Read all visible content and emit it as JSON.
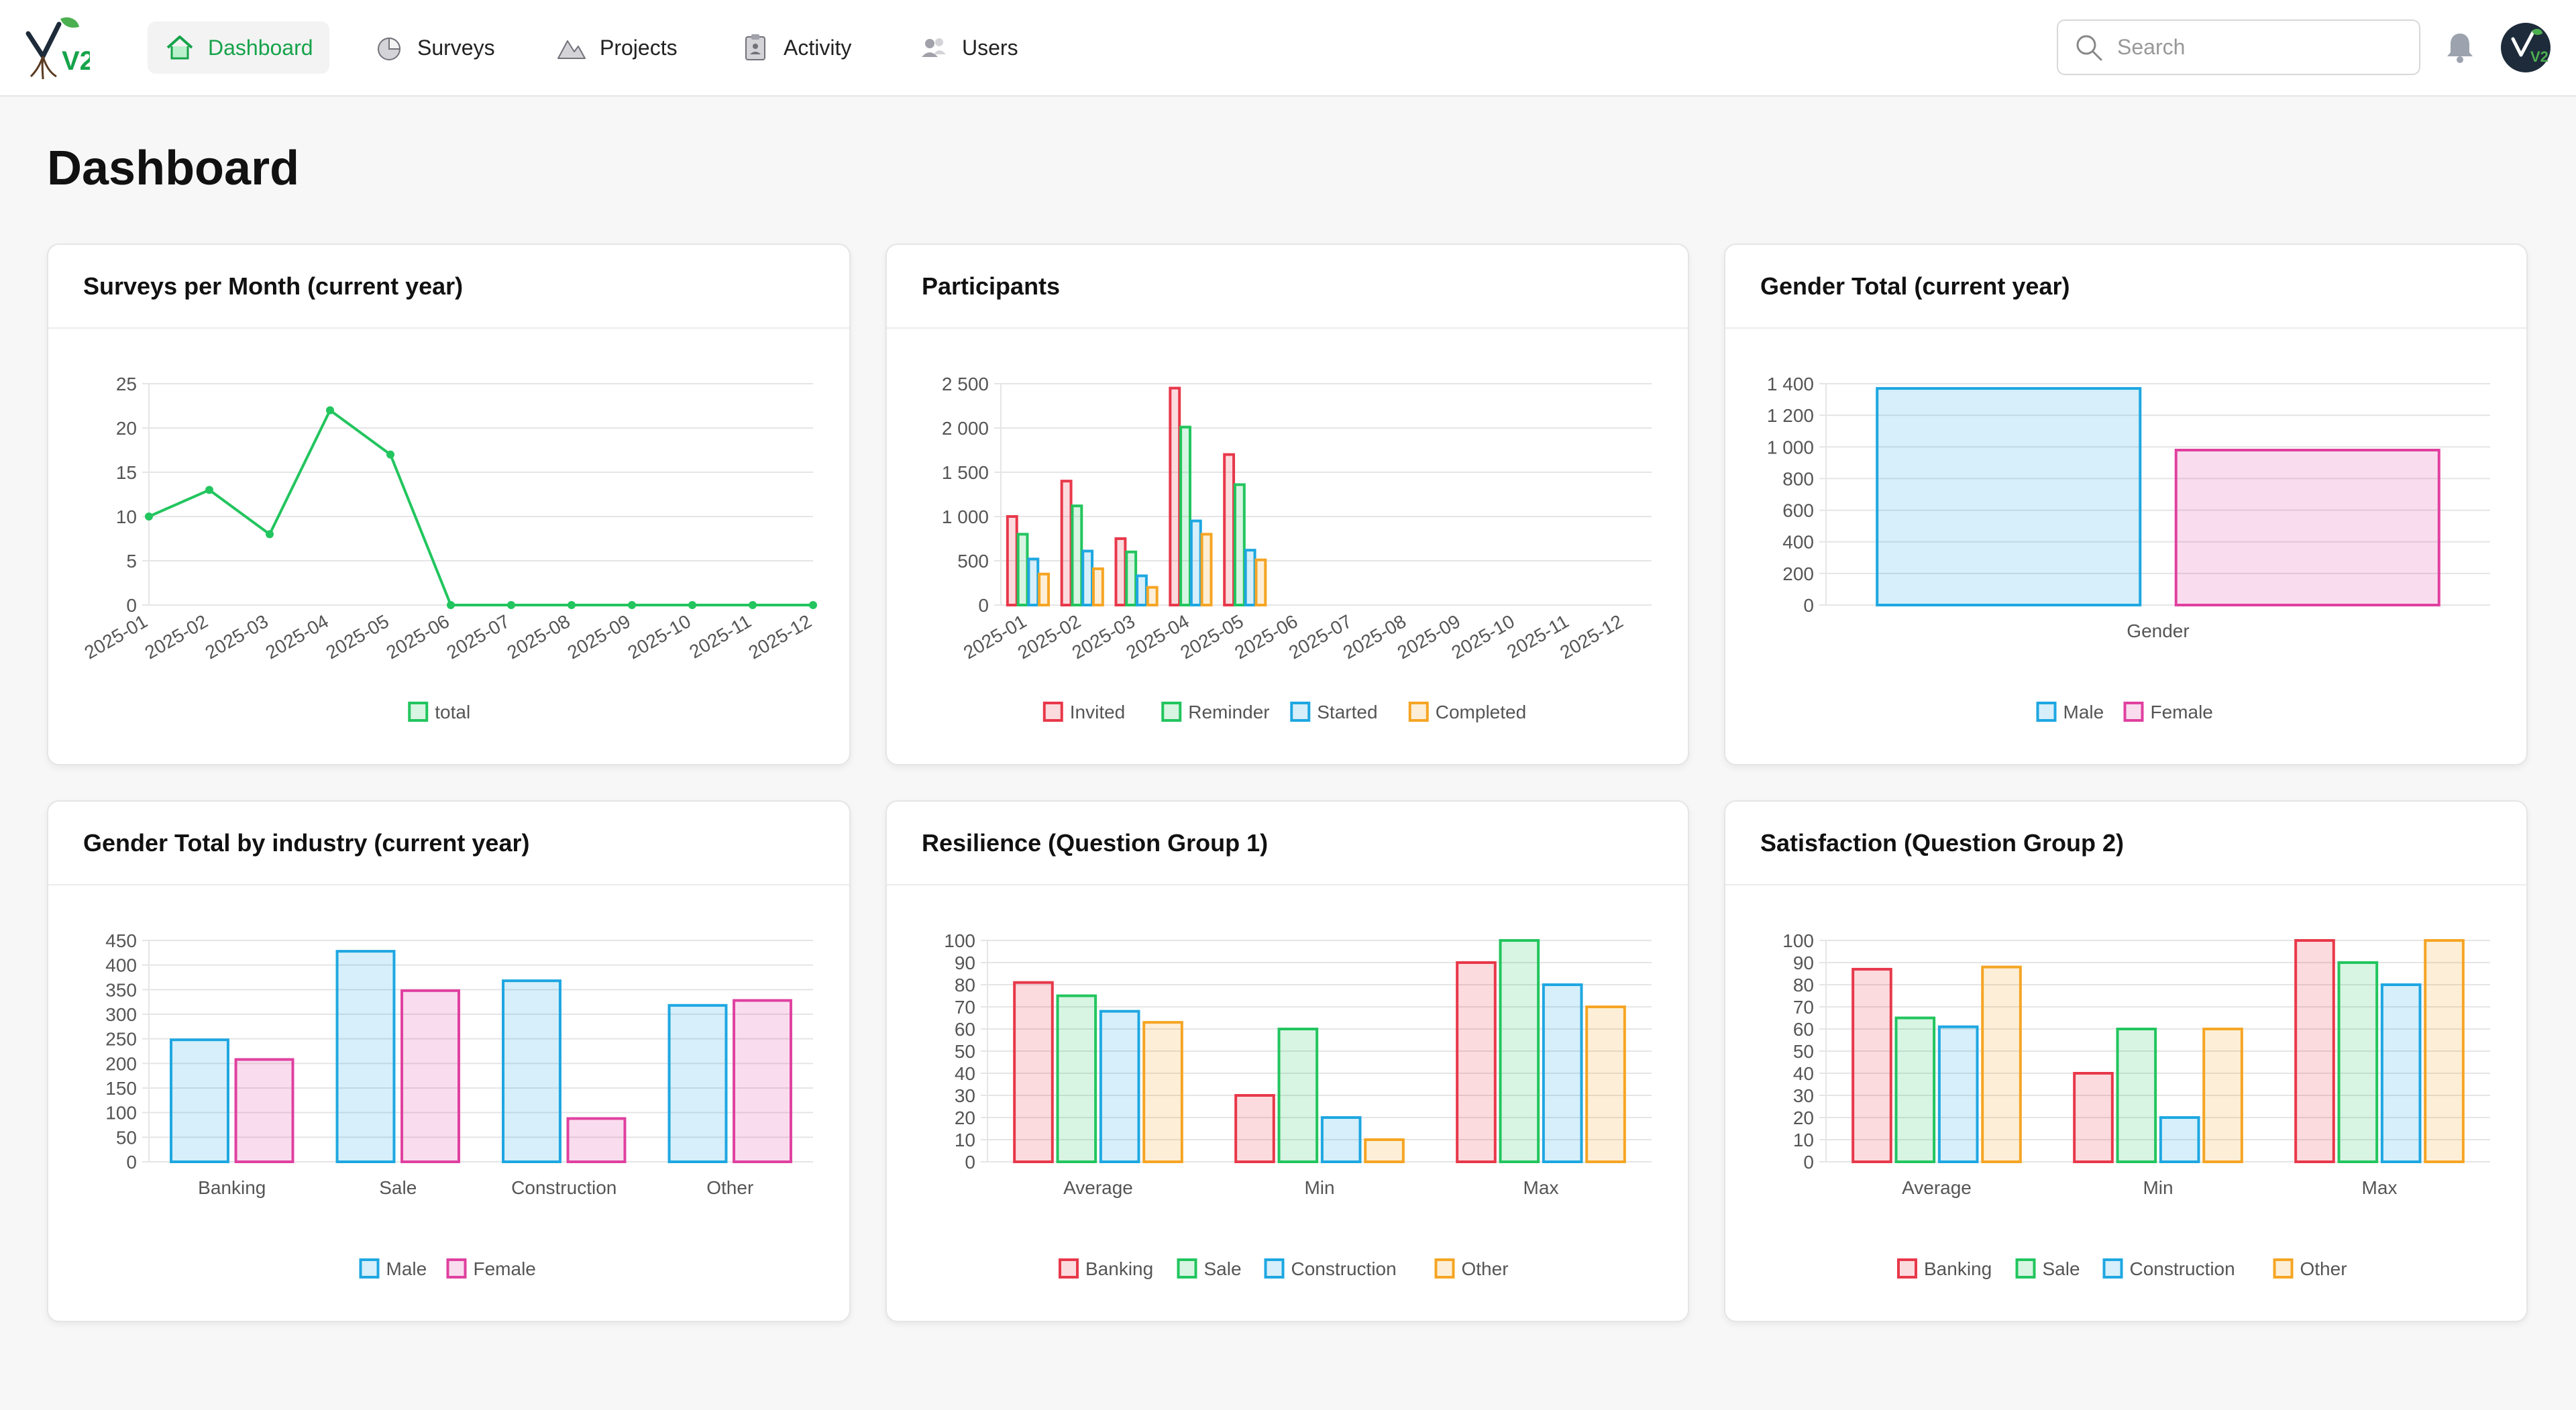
{
  "nav": {
    "items": [
      {
        "label": "Dashboard",
        "icon": "home-icon",
        "active": true
      },
      {
        "label": "Surveys",
        "icon": "pie-icon",
        "active": false
      },
      {
        "label": "Projects",
        "icon": "mountain-icon",
        "active": false
      },
      {
        "label": "Activity",
        "icon": "clipboard-icon",
        "active": false
      },
      {
        "label": "Users",
        "icon": "users-icon",
        "active": false
      }
    ],
    "search_placeholder": "Search"
  },
  "logo": {
    "text": "V2"
  },
  "page": {
    "title": "Dashboard"
  },
  "colors": {
    "accent": "#16a34a",
    "red": "#e8384a",
    "green": "#22c55e",
    "blue": "#1ea7e1",
    "orange": "#f5a524",
    "pink": "#e040a0"
  },
  "chart_data": [
    {
      "id": "surveys",
      "title": "Surveys per Month (current year)",
      "type": "line",
      "categories": [
        "2025-01",
        "2025-02",
        "2025-03",
        "2025-04",
        "2025-05",
        "2025-06",
        "2025-07",
        "2025-08",
        "2025-09",
        "2025-10",
        "2025-11",
        "2025-12"
      ],
      "series": [
        {
          "name": "total",
          "color": "green",
          "values": [
            10,
            13,
            8,
            22,
            17,
            0,
            0,
            0,
            0,
            0,
            0,
            0
          ]
        }
      ],
      "ylim": [
        0,
        25
      ],
      "yticks": [
        "0",
        "5",
        "10",
        "15",
        "20",
        "25"
      ],
      "grid": true,
      "legend": "bottom"
    },
    {
      "id": "participants",
      "title": "Participants",
      "type": "bar",
      "categories": [
        "2025-01",
        "2025-02",
        "2025-03",
        "2025-04",
        "2025-05",
        "2025-06",
        "2025-07",
        "2025-08",
        "2025-09",
        "2025-10",
        "2025-11",
        "2025-12"
      ],
      "series": [
        {
          "name": "Invited",
          "color": "red",
          "values": [
            1000,
            1400,
            750,
            2450,
            1700,
            0,
            0,
            0,
            0,
            0,
            0,
            0
          ]
        },
        {
          "name": "Reminder",
          "color": "green",
          "values": [
            800,
            1120,
            600,
            2010,
            1360,
            0,
            0,
            0,
            0,
            0,
            0,
            0
          ]
        },
        {
          "name": "Started",
          "color": "blue",
          "values": [
            520,
            610,
            330,
            950,
            620,
            0,
            0,
            0,
            0,
            0,
            0,
            0
          ]
        },
        {
          "name": "Completed",
          "color": "orange",
          "values": [
            350,
            410,
            200,
            800,
            510,
            0,
            0,
            0,
            0,
            0,
            0,
            0
          ]
        }
      ],
      "ylim": [
        0,
        2500
      ],
      "yticks": [
        "0",
        "500",
        "1 000",
        "1 500",
        "2 000",
        "2 500"
      ],
      "grid": true,
      "legend": "bottom"
    },
    {
      "id": "gender",
      "title": "Gender Total (current year)",
      "type": "bar",
      "categories": [
        "Gender"
      ],
      "series": [
        {
          "name": "Male",
          "color": "blue",
          "values": [
            1370
          ]
        },
        {
          "name": "Female",
          "color": "pink",
          "values": [
            980
          ]
        }
      ],
      "ylim": [
        0,
        1400
      ],
      "yticks": [
        "0",
        "200",
        "400",
        "600",
        "800",
        "1 000",
        "1 200",
        "1 400"
      ],
      "grid": true,
      "legend": "bottom"
    },
    {
      "id": "gender-industry",
      "title": "Gender Total by industry (current year)",
      "type": "bar",
      "categories": [
        "Banking",
        "Sale",
        "Construction",
        "Other"
      ],
      "series": [
        {
          "name": "Male",
          "color": "blue",
          "values": [
            248,
            428,
            368,
            318
          ]
        },
        {
          "name": "Female",
          "color": "pink",
          "values": [
            208,
            348,
            88,
            328
          ]
        }
      ],
      "ylim": [
        0,
        450
      ],
      "yticks": [
        "0",
        "50",
        "100",
        "150",
        "200",
        "250",
        "300",
        "350",
        "400",
        "450"
      ],
      "grid": true,
      "legend": "bottom"
    },
    {
      "id": "resilience",
      "title": "Resilience (Question Group 1)",
      "type": "bar",
      "categories": [
        "Average",
        "Min",
        "Max"
      ],
      "series": [
        {
          "name": "Banking",
          "color": "red",
          "values": [
            81,
            30,
            90
          ]
        },
        {
          "name": "Sale",
          "color": "green",
          "values": [
            75,
            60,
            100
          ]
        },
        {
          "name": "Construction",
          "color": "blue",
          "values": [
            68,
            20,
            80
          ]
        },
        {
          "name": "Other",
          "color": "orange",
          "values": [
            63,
            10,
            70
          ]
        }
      ],
      "ylim": [
        0,
        100
      ],
      "yticks": [
        "0",
        "10",
        "20",
        "30",
        "40",
        "50",
        "60",
        "70",
        "80",
        "90",
        "100"
      ],
      "grid": true,
      "legend": "bottom"
    },
    {
      "id": "satisfaction",
      "title": "Satisfaction (Question Group 2)",
      "type": "bar",
      "categories": [
        "Average",
        "Min",
        "Max"
      ],
      "series": [
        {
          "name": "Banking",
          "color": "red",
          "values": [
            87,
            40,
            100
          ]
        },
        {
          "name": "Sale",
          "color": "green",
          "values": [
            65,
            60,
            90
          ]
        },
        {
          "name": "Construction",
          "color": "blue",
          "values": [
            61,
            20,
            80
          ]
        },
        {
          "name": "Other",
          "color": "orange",
          "values": [
            88,
            60,
            100
          ]
        }
      ],
      "ylim": [
        0,
        100
      ],
      "yticks": [
        "0",
        "10",
        "20",
        "30",
        "40",
        "50",
        "60",
        "70",
        "80",
        "90",
        "100"
      ],
      "grid": true,
      "legend": "bottom"
    }
  ]
}
